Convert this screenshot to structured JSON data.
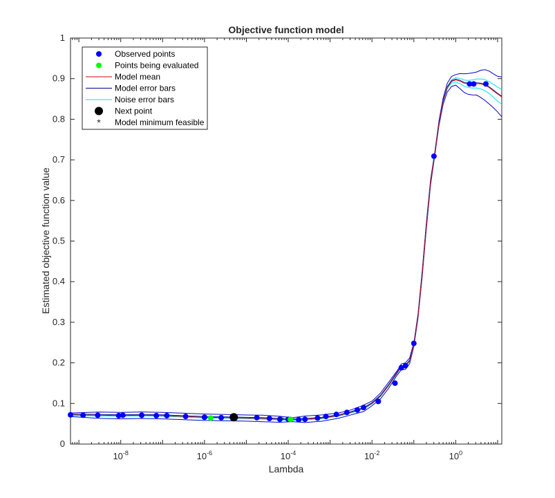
{
  "chart_data": {
    "type": "line",
    "title": "Objective function model",
    "xlabel": "Lambda",
    "ylabel": "Estimated objective function value",
    "xscale": "log",
    "xlim_log10": [
      -9.2,
      1.1
    ],
    "ylim": [
      0,
      1
    ],
    "yticks": [
      0,
      0.1,
      0.2,
      0.3,
      0.4,
      0.5,
      0.6,
      0.7,
      0.8,
      0.9,
      1
    ],
    "ytick_labels": [
      "0",
      "0.1",
      "0.2",
      "0.3",
      "0.4",
      "0.5",
      "0.6",
      "0.7",
      "0.8",
      "0.9",
      "1"
    ],
    "xticks_log10": [
      -8,
      -6,
      -4,
      -2,
      0
    ],
    "xtick_base": "10",
    "xtick_exponents": [
      "-8",
      "-6",
      "-4",
      "-2",
      "0"
    ],
    "grid": false,
    "legend_position": "top-left",
    "colors": {
      "observed": "#0000ff",
      "evaluating": "#00ff00",
      "mean": "#cc0000",
      "error_bars": "#00008b",
      "noise_bars": "#00e5ee",
      "next_point": "#000000",
      "minimum": "#ff0000",
      "model_error_line": "#0000cd"
    },
    "legend": [
      {
        "label": "Observed points",
        "marker": "dot",
        "color": "#0000ff"
      },
      {
        "label": "Points being evaluated",
        "marker": "dot",
        "color": "#00ff00"
      },
      {
        "label": "Model mean",
        "marker": "line",
        "color": "#cc0000"
      },
      {
        "label": "Model error bars",
        "marker": "line",
        "color": "#00008b"
      },
      {
        "label": "Noise error bars",
        "marker": "line",
        "color": "#00e5ee"
      },
      {
        "label": "Next point",
        "marker": "bigdot",
        "color": "#000000"
      },
      {
        "label": "Model minimum feasible",
        "marker": "star",
        "color": "#ff0000"
      }
    ],
    "model_mean": [
      [
        -9.2,
        0.072
      ],
      [
        -8.5,
        0.071
      ],
      [
        -8.0,
        0.07
      ],
      [
        -7.5,
        0.071
      ],
      [
        -7.0,
        0.07
      ],
      [
        -6.5,
        0.068
      ],
      [
        -6.0,
        0.066
      ],
      [
        -5.5,
        0.065
      ],
      [
        -5.0,
        0.064
      ],
      [
        -4.6,
        0.063
      ],
      [
        -4.2,
        0.061
      ],
      [
        -3.9,
        0.06
      ],
      [
        -3.6,
        0.061
      ],
      [
        -3.2,
        0.064
      ],
      [
        -2.8,
        0.07
      ],
      [
        -2.5,
        0.078
      ],
      [
        -2.2,
        0.088
      ],
      [
        -2.0,
        0.1
      ],
      [
        -1.8,
        0.118
      ],
      [
        -1.6,
        0.145
      ],
      [
        -1.4,
        0.175
      ],
      [
        -1.3,
        0.19
      ],
      [
        -1.2,
        0.192
      ],
      [
        -1.1,
        0.205
      ],
      [
        -1.0,
        0.245
      ],
      [
        -0.9,
        0.315
      ],
      [
        -0.8,
        0.42
      ],
      [
        -0.7,
        0.54
      ],
      [
        -0.6,
        0.645
      ],
      [
        -0.5,
        0.715
      ],
      [
        -0.4,
        0.79
      ],
      [
        -0.3,
        0.845
      ],
      [
        -0.2,
        0.878
      ],
      [
        -0.1,
        0.893
      ],
      [
        0.0,
        0.897
      ],
      [
        0.1,
        0.894
      ],
      [
        0.2,
        0.889
      ],
      [
        0.3,
        0.887
      ],
      [
        0.4,
        0.887
      ],
      [
        0.5,
        0.888
      ],
      [
        0.6,
        0.887
      ],
      [
        0.7,
        0.884
      ],
      [
        0.8,
        0.878
      ],
      [
        0.9,
        0.87
      ],
      [
        1.0,
        0.862
      ],
      [
        1.1,
        0.855
      ]
    ],
    "observed_points": [
      [
        -9.2,
        0.072
      ],
      [
        -8.9,
        0.071
      ],
      [
        -8.55,
        0.071
      ],
      [
        -8.05,
        0.07
      ],
      [
        -7.95,
        0.071
      ],
      [
        -7.5,
        0.071
      ],
      [
        -7.15,
        0.07
      ],
      [
        -6.9,
        0.07
      ],
      [
        -6.45,
        0.068
      ],
      [
        -6.0,
        0.066
      ],
      [
        -5.6,
        0.065
      ],
      [
        -5.3,
        0.064
      ],
      [
        -4.75,
        0.065
      ],
      [
        -4.45,
        0.063
      ],
      [
        -4.2,
        0.061
      ],
      [
        -4.0,
        0.061
      ],
      [
        -3.75,
        0.06
      ],
      [
        -3.6,
        0.061
      ],
      [
        -3.3,
        0.064
      ],
      [
        -3.1,
        0.068
      ],
      [
        -2.85,
        0.073
      ],
      [
        -2.6,
        0.078
      ],
      [
        -2.35,
        0.084
      ],
      [
        -2.2,
        0.09
      ],
      [
        -1.85,
        0.105
      ],
      [
        -1.45,
        0.15
      ],
      [
        -1.3,
        0.188
      ],
      [
        -1.2,
        0.193
      ],
      [
        -1.0,
        0.248
      ],
      [
        -0.52,
        0.709
      ],
      [
        0.33,
        0.887
      ],
      [
        0.43,
        0.887
      ],
      [
        0.72,
        0.887
      ]
    ],
    "evaluating_points": [
      [
        -5.85,
        0.064
      ],
      [
        -3.95,
        0.061
      ]
    ],
    "next_point": [
      -5.3,
      0.066
    ],
    "model_minimum": [
      -4.15,
      0.06
    ]
  }
}
